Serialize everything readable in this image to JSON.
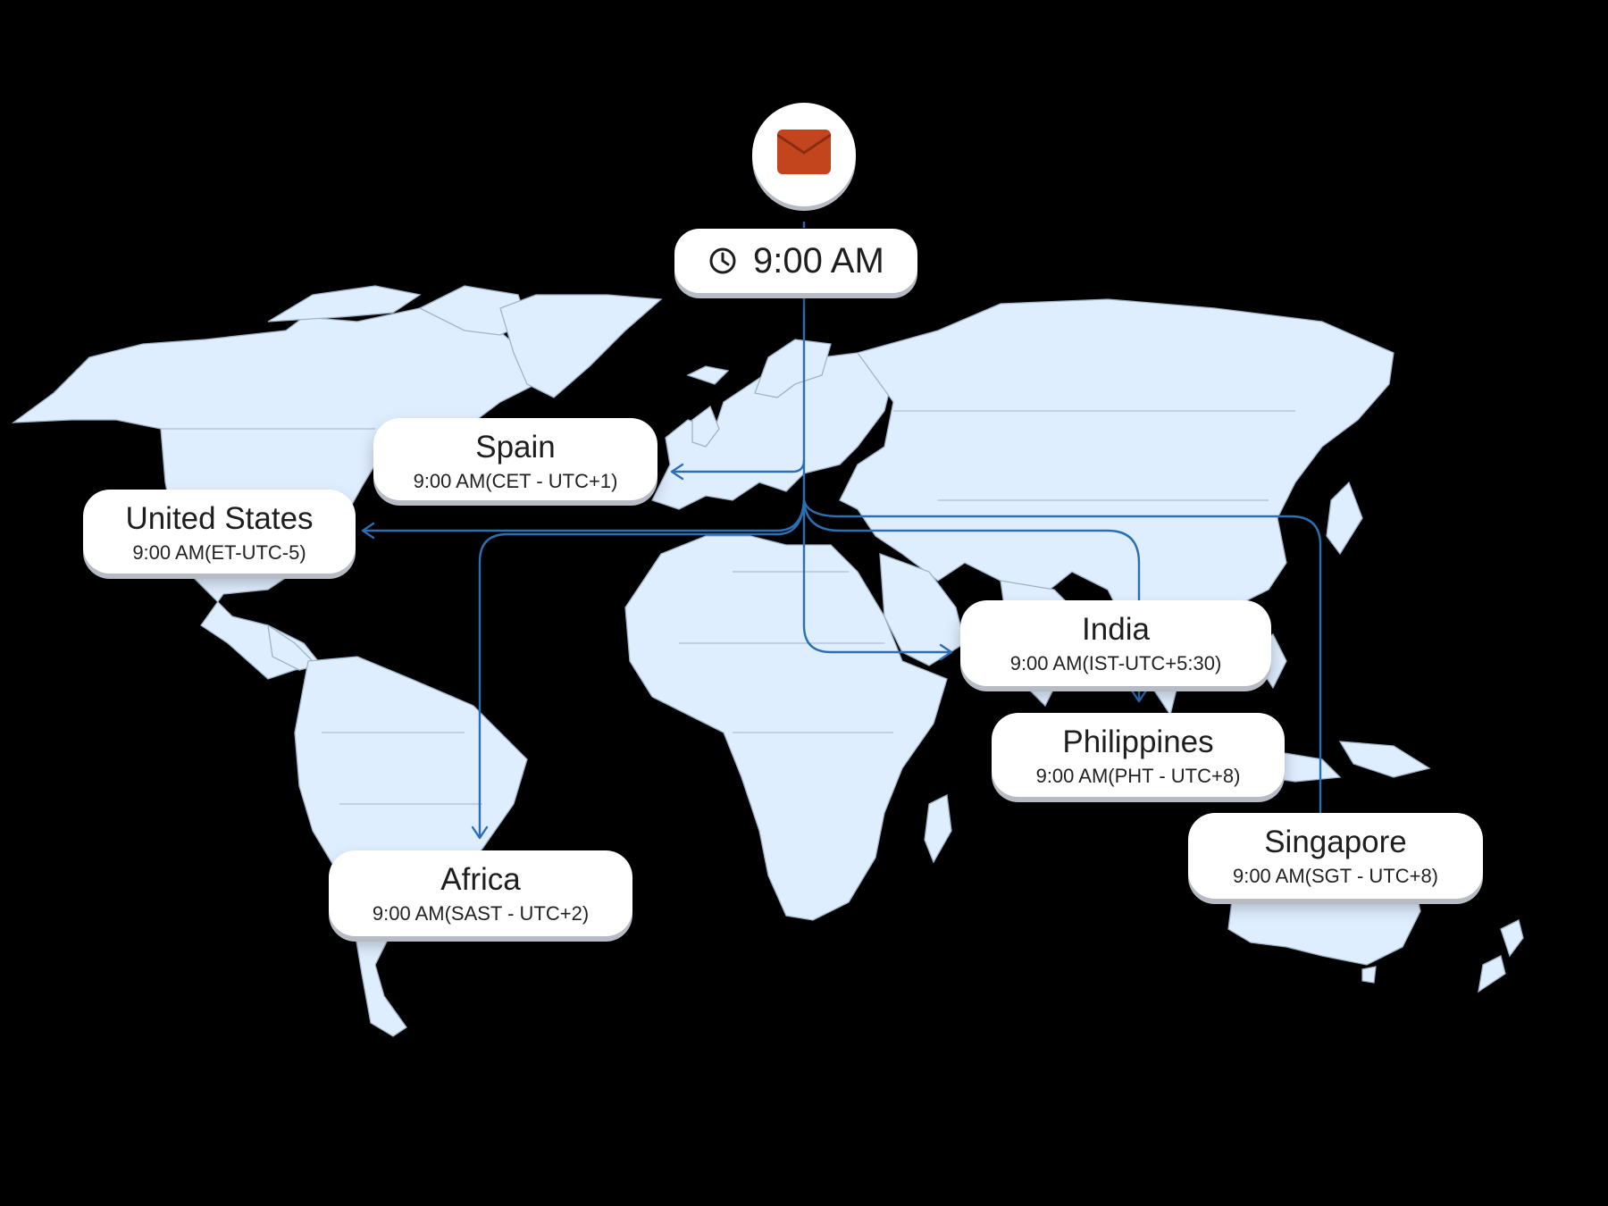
{
  "header": {
    "icon": "envelope-icon",
    "clock_icon": "clock-icon",
    "send_time": "9:00 AM"
  },
  "colors": {
    "land": "#dfeeff",
    "route": "#2c6fb3",
    "envelope": "#c2451e",
    "background": "#000000"
  },
  "locations": [
    {
      "id": "spain",
      "name": "Spain",
      "time": "9:00 AM(CET - UTC+1)"
    },
    {
      "id": "united-states",
      "name": "United States",
      "time": "9:00 AM(ET-UTC-5)"
    },
    {
      "id": "india",
      "name": "India",
      "time": "9:00 AM(IST-UTC+5:30)"
    },
    {
      "id": "philippines",
      "name": "Philippines",
      "time": "9:00 AM(PHT - UTC+8)"
    },
    {
      "id": "singapore",
      "name": "Singapore",
      "time": "9:00 AM(SGT - UTC+8)"
    },
    {
      "id": "africa",
      "name": "Africa",
      "time": "9:00 AM(SAST - UTC+2)"
    }
  ]
}
